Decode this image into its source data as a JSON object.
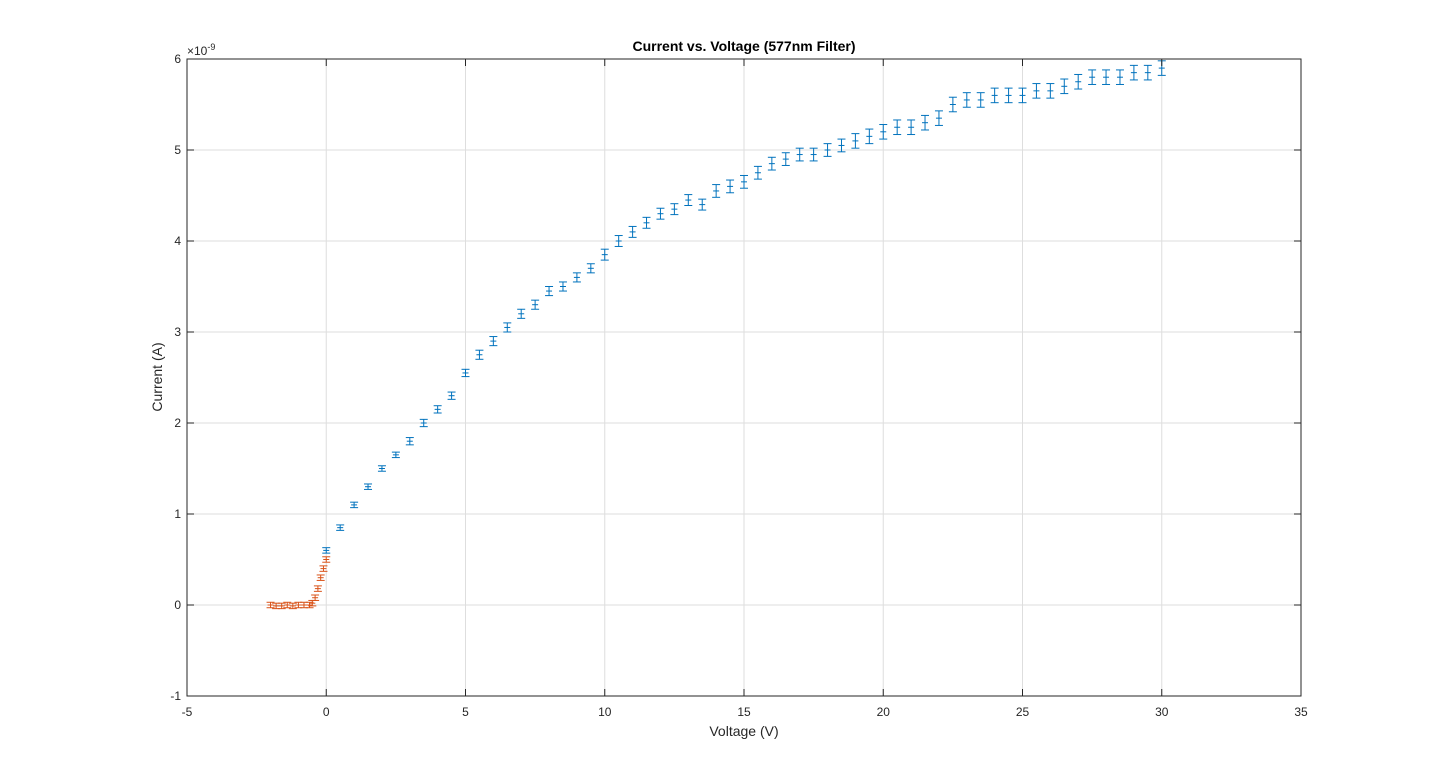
{
  "chart_data": {
    "type": "scatter",
    "title": "Current vs. Voltage (577nm Filter)",
    "xlabel": "Voltage (V)",
    "ylabel": "Current (A)",
    "y_exponent_label": "×10",
    "y_exponent_power": "-9",
    "xlim": [
      -5,
      35
    ],
    "ylim": [
      -1,
      6
    ],
    "xticks": [
      -5,
      0,
      5,
      10,
      15,
      20,
      25,
      30,
      35
    ],
    "yticks": [
      -1,
      0,
      1,
      2,
      3,
      4,
      5,
      6
    ],
    "xtick_labels": [
      "-5",
      "0",
      "5",
      "10",
      "15",
      "20",
      "25",
      "30",
      "35"
    ],
    "ytick_labels": [
      "-1",
      "0",
      "1",
      "2",
      "3",
      "4",
      "5",
      "6"
    ],
    "grid": true,
    "series": [
      {
        "color": "#0072BD",
        "marker": "errorbar",
        "x": [
          0,
          0.5,
          1,
          1.5,
          2,
          2.5,
          3,
          3.5,
          4,
          4.5,
          5,
          5.5,
          6,
          6.5,
          7,
          7.5,
          8,
          8.5,
          9,
          9.5,
          10,
          10.5,
          11,
          11.5,
          12,
          12.5,
          13,
          13.5,
          14,
          14.5,
          15,
          15.5,
          16,
          16.5,
          17,
          17.5,
          18,
          18.5,
          19,
          19.5,
          20,
          20.5,
          21,
          21.5,
          22,
          22.5,
          23,
          23.5,
          24,
          24.5,
          25,
          25.5,
          26,
          26.5,
          27,
          27.5,
          28,
          28.5,
          29,
          29.5,
          30
        ],
        "y": [
          0.6,
          0.85,
          1.1,
          1.3,
          1.5,
          1.65,
          1.8,
          2.0,
          2.15,
          2.3,
          2.55,
          2.75,
          2.9,
          3.05,
          3.2,
          3.3,
          3.45,
          3.5,
          3.6,
          3.7,
          3.85,
          4.0,
          4.1,
          4.2,
          4.3,
          4.35,
          4.45,
          4.4,
          4.55,
          4.6,
          4.65,
          4.75,
          4.85,
          4.9,
          4.95,
          4.95,
          5.0,
          5.05,
          5.1,
          5.15,
          5.2,
          5.25,
          5.25,
          5.3,
          5.35,
          5.5,
          5.55,
          5.55,
          5.6,
          5.6,
          5.6,
          5.65,
          5.65,
          5.7,
          5.75,
          5.8,
          5.8,
          5.8,
          5.85,
          5.85,
          5.9
        ],
        "err": [
          0.03,
          0.03,
          0.03,
          0.03,
          0.03,
          0.03,
          0.04,
          0.04,
          0.04,
          0.04,
          0.04,
          0.05,
          0.05,
          0.05,
          0.05,
          0.05,
          0.05,
          0.05,
          0.05,
          0.05,
          0.06,
          0.06,
          0.06,
          0.06,
          0.06,
          0.06,
          0.06,
          0.06,
          0.07,
          0.07,
          0.07,
          0.07,
          0.07,
          0.07,
          0.07,
          0.07,
          0.07,
          0.07,
          0.08,
          0.08,
          0.08,
          0.08,
          0.08,
          0.08,
          0.08,
          0.08,
          0.08,
          0.08,
          0.08,
          0.08,
          0.08,
          0.08,
          0.08,
          0.08,
          0.08,
          0.08,
          0.08,
          0.08,
          0.08,
          0.08,
          0.08
        ]
      },
      {
        "color": "#D95319",
        "marker": "errorbar",
        "x": [
          -2,
          -1.8,
          -1.6,
          -1.4,
          -1.2,
          -1.0,
          -0.8,
          -0.6,
          -0.5,
          -0.4,
          -0.3,
          -0.2,
          -0.1,
          0
        ],
        "y": [
          0,
          -0.01,
          -0.01,
          0,
          -0.01,
          0,
          0,
          0,
          0.02,
          0.08,
          0.18,
          0.3,
          0.4,
          0.5
        ],
        "err": [
          0.03,
          0.03,
          0.03,
          0.03,
          0.03,
          0.03,
          0.03,
          0.03,
          0.03,
          0.03,
          0.03,
          0.03,
          0.03,
          0.03
        ]
      }
    ]
  }
}
